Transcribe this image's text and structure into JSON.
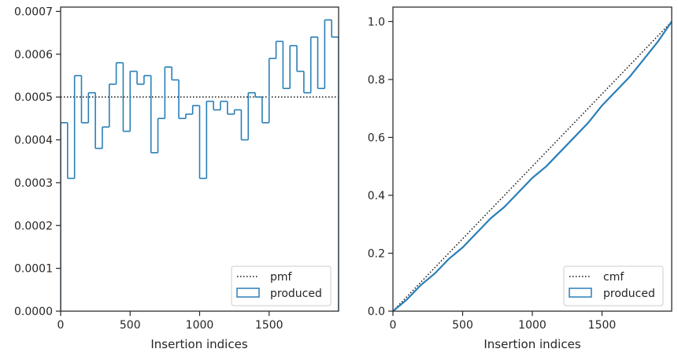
{
  "colors": {
    "series": "#2a7fb8",
    "reference": "#111111",
    "axis": "#262626",
    "legend_border": "#cccccc"
  },
  "chart_data": [
    {
      "type": "line",
      "subtype": "step-histogram",
      "title": "",
      "xlabel": "Insertion indices",
      "ylabel": "",
      "xlim": [
        0,
        2000
      ],
      "ylim": [
        0,
        0.00071
      ],
      "xticks": [
        0,
        500,
        1000,
        1500
      ],
      "xtick_labels": [
        "0",
        "500",
        "1000",
        "1500"
      ],
      "yticks": [
        0,
        0.0001,
        0.0002,
        0.0003,
        0.0004,
        0.0005,
        0.0006,
        0.0007
      ],
      "ytick_labels": [
        "0.0000",
        "0.0001",
        "0.0002",
        "0.0003",
        "0.0004",
        "0.0005",
        "0.0006",
        "0.0007"
      ],
      "legend": {
        "placement": "lower-right",
        "entries": [
          {
            "label": "pmf",
            "style": "dotted-line"
          },
          {
            "label": "produced",
            "style": "outlined-box"
          }
        ]
      },
      "series": [
        {
          "name": "pmf",
          "style": "dotted",
          "x": [
            0,
            2000
          ],
          "values": [
            0.0005,
            0.0005
          ]
        },
        {
          "name": "produced",
          "style": "step",
          "bin_edges": [
            0,
            50,
            100,
            150,
            200,
            250,
            300,
            350,
            400,
            450,
            500,
            550,
            600,
            650,
            700,
            750,
            800,
            850,
            900,
            950,
            1000,
            1050,
            1100,
            1150,
            1200,
            1250,
            1300,
            1350,
            1400,
            1450,
            1500,
            1550,
            1600,
            1650,
            1700,
            1750,
            1800,
            1850,
            1900,
            1950,
            2000
          ],
          "values": [
            0.00044,
            0.00031,
            0.00055,
            0.00044,
            0.00051,
            0.00038,
            0.00043,
            0.00053,
            0.00058,
            0.00042,
            0.00056,
            0.00053,
            0.00055,
            0.00037,
            0.00045,
            0.00057,
            0.00054,
            0.00045,
            0.00046,
            0.00048,
            0.00031,
            0.00049,
            0.00047,
            0.00049,
            0.00046,
            0.00047,
            0.0004,
            0.00051,
            0.0005,
            0.00044,
            0.00059,
            0.00063,
            0.00052,
            0.00062,
            0.00056,
            0.00051,
            0.00064,
            0.00052,
            0.00068,
            0.00064
          ]
        }
      ]
    },
    {
      "type": "line",
      "subtype": "cumulative",
      "title": "",
      "xlabel": "Insertion indices",
      "ylabel": "",
      "xlim": [
        0,
        2000
      ],
      "ylim": [
        0,
        1.05
      ],
      "xticks": [
        0,
        500,
        1000,
        1500
      ],
      "xtick_labels": [
        "0",
        "500",
        "1000",
        "1500"
      ],
      "yticks": [
        0,
        0.2,
        0.4,
        0.6,
        0.8,
        1.0
      ],
      "ytick_labels": [
        "0.0",
        "0.2",
        "0.4",
        "0.6",
        "0.8",
        "1.0"
      ],
      "legend": {
        "placement": "lower-right",
        "entries": [
          {
            "label": "cmf",
            "style": "dotted-line"
          },
          {
            "label": "produced",
            "style": "outlined-box"
          }
        ]
      },
      "series": [
        {
          "name": "cmf",
          "style": "dotted",
          "x": [
            0,
            2000
          ],
          "values": [
            0,
            1.0
          ]
        },
        {
          "name": "produced",
          "style": "line",
          "x": [
            0,
            100,
            200,
            300,
            400,
            500,
            600,
            700,
            800,
            900,
            1000,
            1100,
            1200,
            1300,
            1400,
            1500,
            1600,
            1700,
            1800,
            1900,
            2000
          ],
          "values": [
            0,
            0.04,
            0.09,
            0.13,
            0.18,
            0.22,
            0.27,
            0.32,
            0.36,
            0.41,
            0.46,
            0.5,
            0.55,
            0.6,
            0.65,
            0.71,
            0.76,
            0.81,
            0.87,
            0.93,
            1.0
          ]
        }
      ]
    }
  ]
}
